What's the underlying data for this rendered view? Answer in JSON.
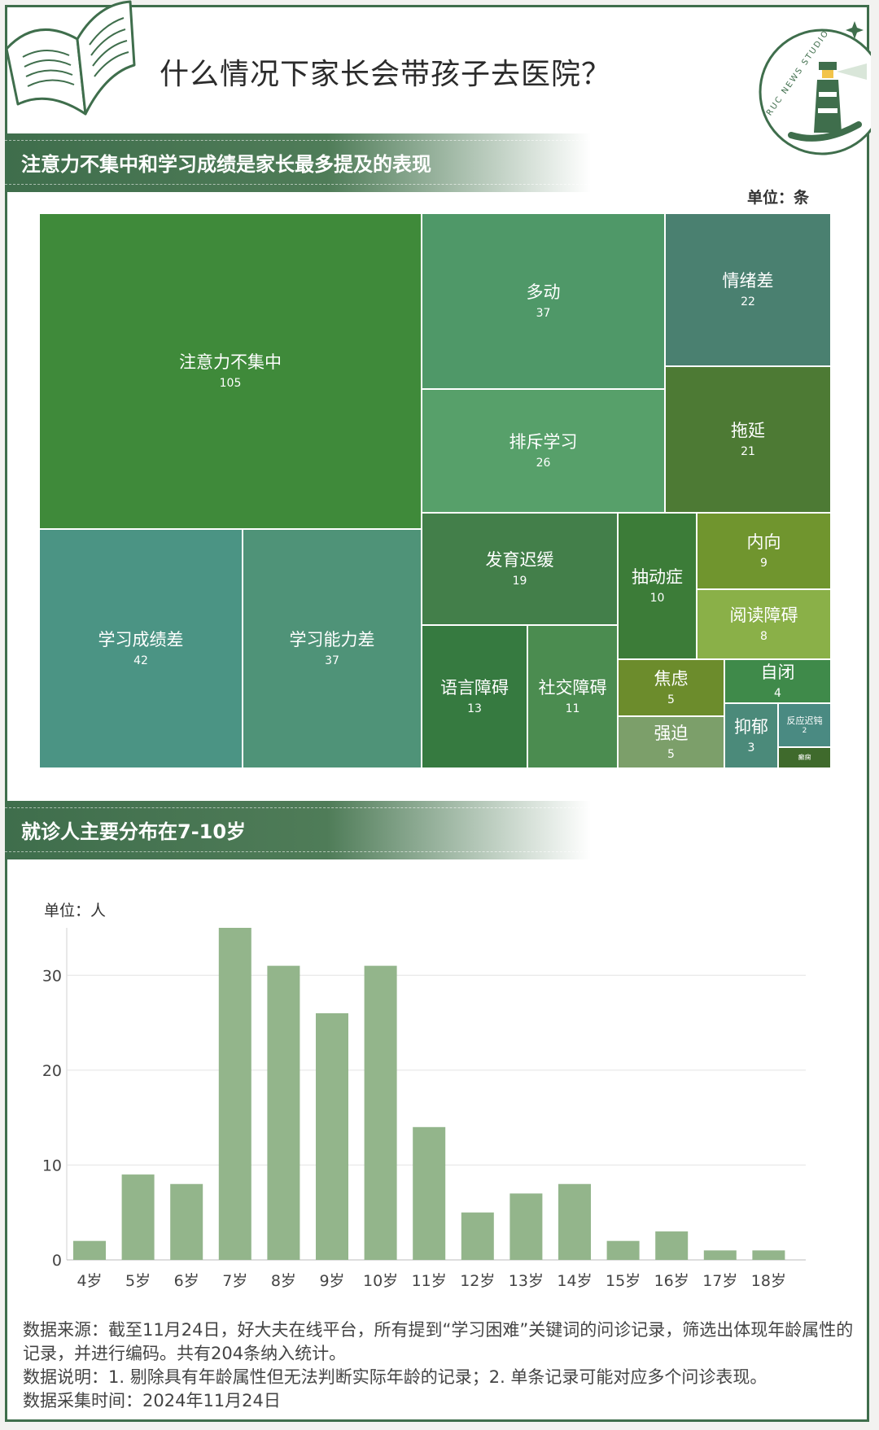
{
  "header": {
    "title": "什么情况下家长会带孩子去医院？",
    "logo_text": "RUC NEWS STUDIO"
  },
  "section1": {
    "title": "注意力不集中和学习成绩是家长最多提及的表现",
    "unit": "单位：条"
  },
  "section2": {
    "title": "就诊人主要分布在7-10岁",
    "unit": "单位：人"
  },
  "colors": {
    "brand": "#3f6e4c",
    "bar": "#93b58b",
    "treemap_main": "#3f8a3a"
  },
  "chart_data": [
    {
      "type": "treemap",
      "items": [
        {
          "label": "注意力不集中",
          "value": 105,
          "color": "#3f8a3a"
        },
        {
          "label": "学习成绩差",
          "value": 42,
          "color": "#4b9484"
        },
        {
          "label": "学习能力差",
          "value": 37,
          "color": "#4f9378"
        },
        {
          "label": "多动",
          "value": 37,
          "color": "#4f9868"
        },
        {
          "label": "排斥学习",
          "value": 26,
          "color": "#57a06a"
        },
        {
          "label": "情绪差",
          "value": 22,
          "color": "#4a8070"
        },
        {
          "label": "拖延",
          "value": 21,
          "color": "#4d7a34"
        },
        {
          "label": "发育迟缓",
          "value": 19,
          "color": "#437f4a"
        },
        {
          "label": "语言障碍",
          "value": 13,
          "color": "#367a40"
        },
        {
          "label": "社交障碍",
          "value": 11,
          "color": "#4b8c50"
        },
        {
          "label": "抽动症",
          "value": 10,
          "color": "#3c7c38"
        },
        {
          "label": "内向",
          "value": 9,
          "color": "#70952e"
        },
        {
          "label": "阅读障碍",
          "value": 8,
          "color": "#8ab048"
        },
        {
          "label": "焦虑",
          "value": 5,
          "color": "#6c8c2c"
        },
        {
          "label": "强迫",
          "value": 5,
          "color": "#7c9f6a"
        },
        {
          "label": "自闭",
          "value": 4,
          "color": "#3f8a4a"
        },
        {
          "label": "抑郁",
          "value": 3,
          "color": "#4b8a7a"
        },
        {
          "label": "反应迟钝",
          "value": 2,
          "color": "#4a8a82"
        },
        {
          "label": "癫痫",
          "value": null,
          "color": "#3f6a2c"
        }
      ]
    },
    {
      "type": "bar",
      "categories": [
        "4岁",
        "5岁",
        "6岁",
        "7岁",
        "8岁",
        "9岁",
        "10岁",
        "11岁",
        "12岁",
        "13岁",
        "14岁",
        "15岁",
        "16岁",
        "17岁",
        "18岁"
      ],
      "values": [
        2,
        9,
        8,
        35,
        31,
        26,
        31,
        14,
        5,
        7,
        8,
        2,
        3,
        1,
        1
      ],
      "yticks": [
        0,
        10,
        20,
        30
      ],
      "ylim": [
        0,
        35
      ],
      "grid": true
    }
  ],
  "notes": [
    "数据来源：截至11月24日，好大夫在线平台，所有提到“学习困难”关键词的问诊记录，筛选出体现年龄属性的记录，并进行编码。共有204条纳入统计。",
    "数据说明：1. 剔除具有年龄属性但无法判断实际年龄的记录；2. 单条记录可能对应多个问诊表现。",
    "数据采集时间：2024年11月24日"
  ]
}
